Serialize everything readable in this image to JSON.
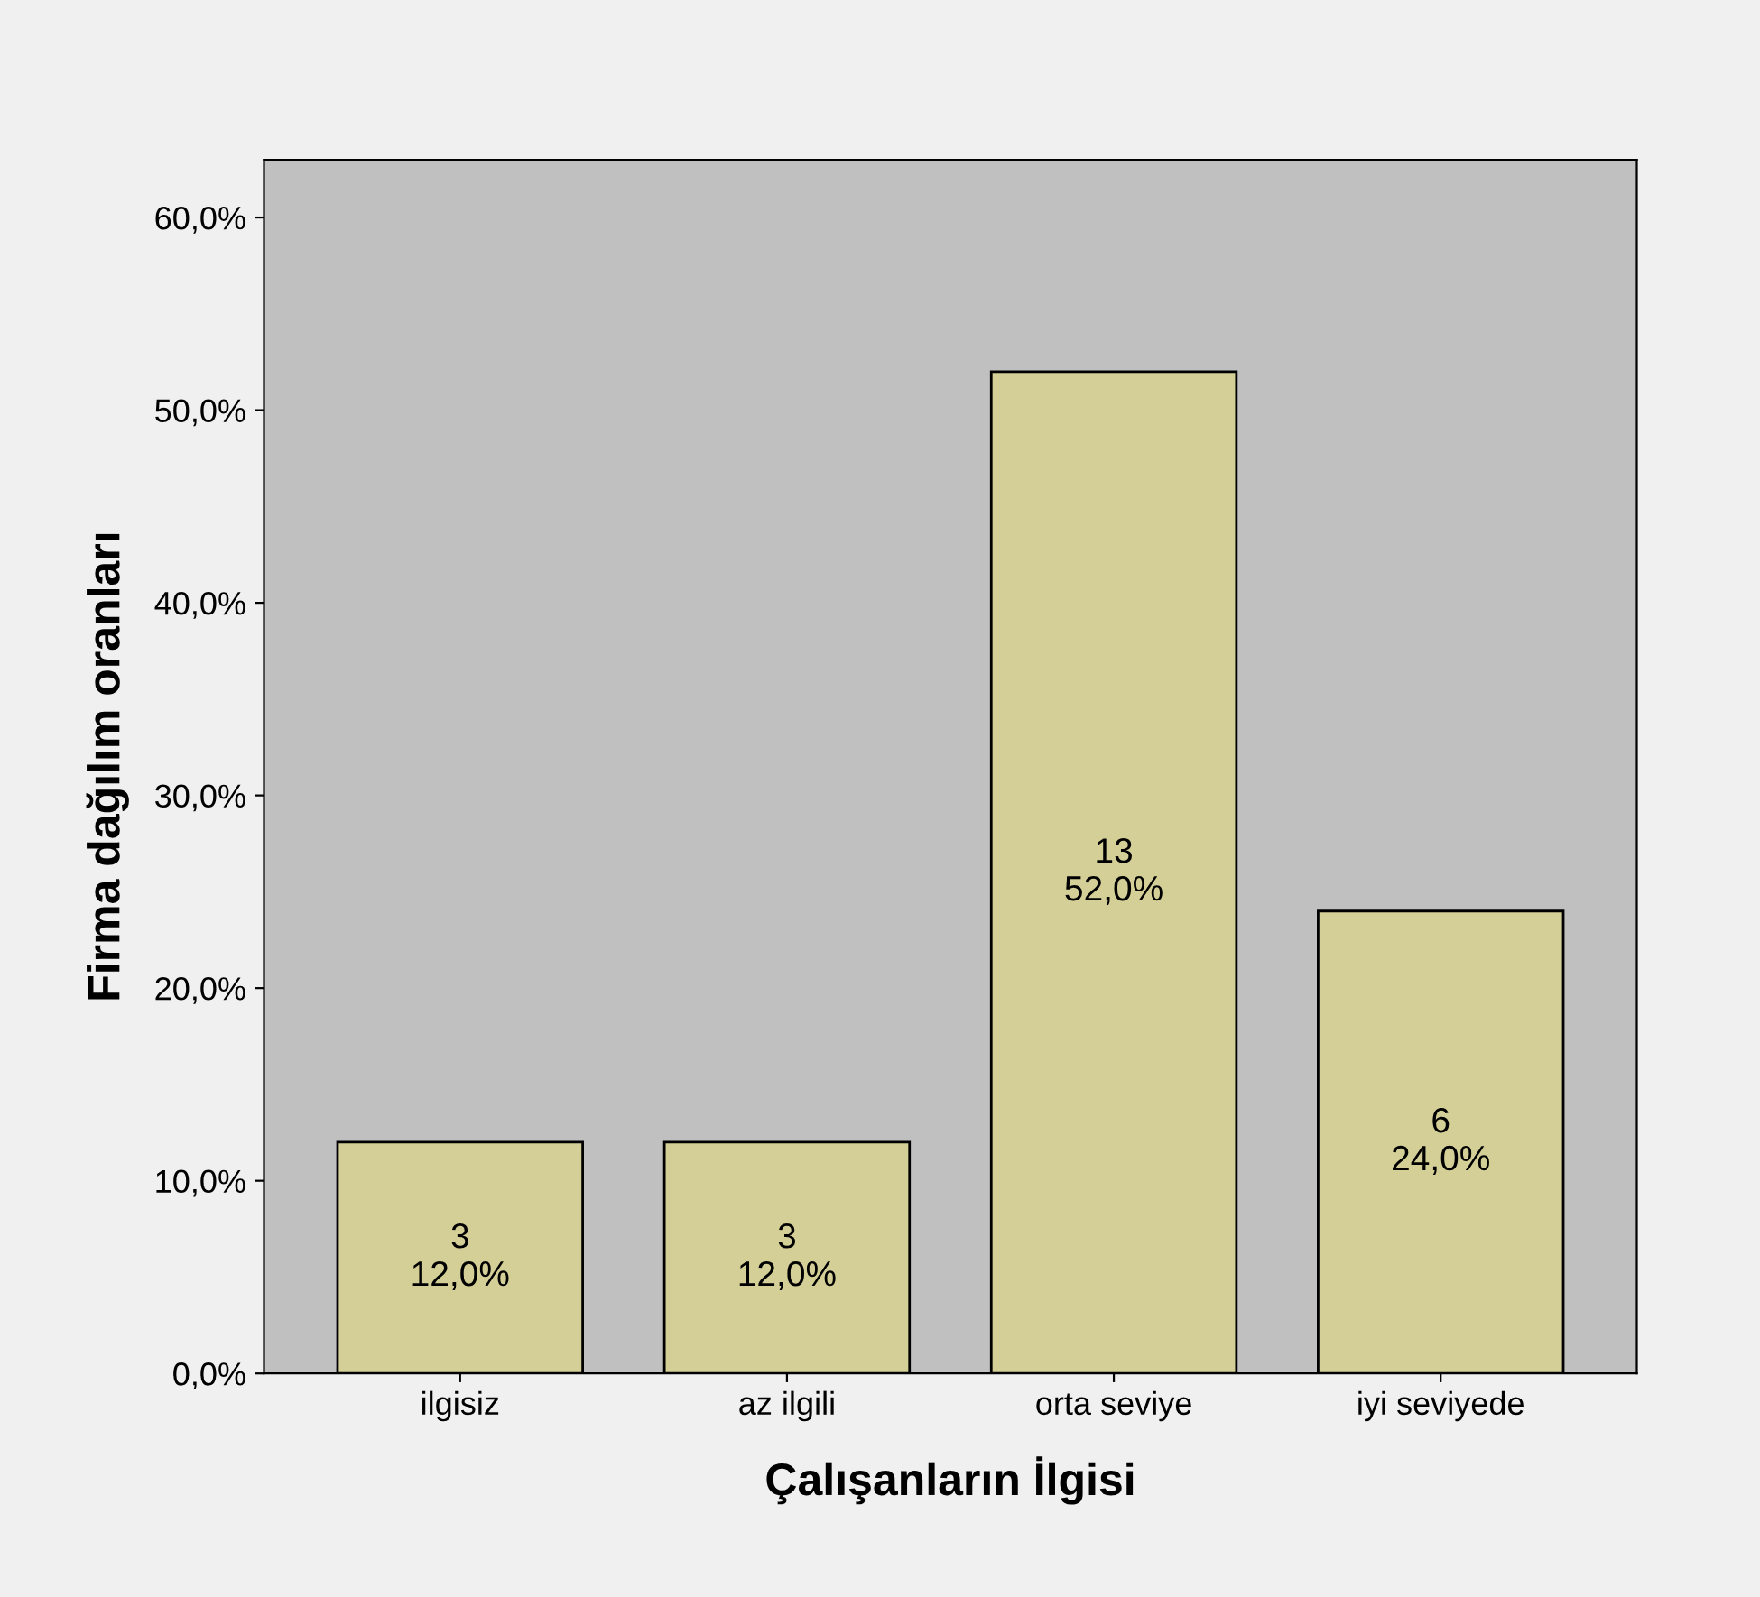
{
  "chart_data": {
    "type": "bar",
    "xlabel": "Çalışanların İlgisi",
    "ylabel": "Firma dağılım oranları",
    "categories": [
      "ilgisiz",
      "az ilgili",
      "orta seviye",
      "iyi seviyede"
    ],
    "values": [
      12,
      12,
      52,
      24
    ],
    "color": "#d4cf96",
    "value_labels": [
      "3\n12,0%",
      "3\n12,0%",
      "13\n52,0%",
      "6\n24,0%"
    ],
    "ylim": [
      0,
      63
    ],
    "yticks": [
      {
        "value": 0,
        "label": "0,0%"
      },
      {
        "value": 10,
        "label": "10,0%"
      },
      {
        "value": 20,
        "label": "20,0%"
      },
      {
        "value": 30,
        "label": "30,0%"
      },
      {
        "value": 40,
        "label": "40,0%"
      },
      {
        "value": 50,
        "label": "50,0%"
      },
      {
        "value": 60,
        "label": "60,0%"
      }
    ],
    "grid": false,
    "legend": false
  }
}
